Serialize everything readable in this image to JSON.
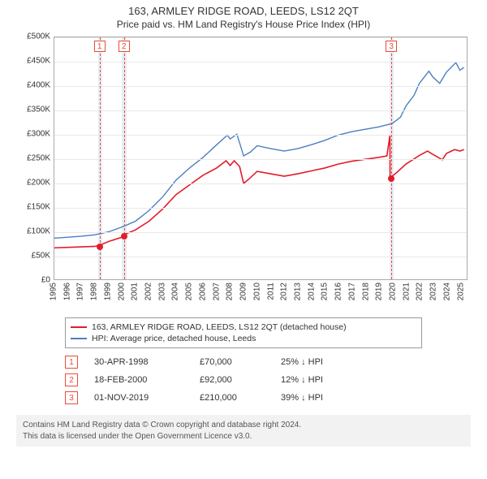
{
  "title": "163, ARMLEY RIDGE ROAD, LEEDS, LS12 2QT",
  "subtitle": "Price paid vs. HM Land Registry's House Price Index (HPI)",
  "chart": {
    "type": "line",
    "background_color": "#ffffff",
    "grid_color": "#e9e9e9",
    "border_color": "#aaaaaa",
    "xlim": [
      1995,
      2025.5
    ],
    "ylim": [
      0,
      500000
    ],
    "y_ticks": [
      0,
      50000,
      100000,
      150000,
      200000,
      250000,
      300000,
      350000,
      400000,
      450000,
      500000
    ],
    "y_tick_labels": [
      "£0",
      "£50K",
      "£100K",
      "£150K",
      "£200K",
      "£250K",
      "£300K",
      "£350K",
      "£400K",
      "£450K",
      "£500K"
    ],
    "x_ticks": [
      1995,
      1996,
      1997,
      1998,
      1999,
      2000,
      2001,
      2002,
      2003,
      2004,
      2005,
      2006,
      2007,
      2008,
      2009,
      2010,
      2011,
      2012,
      2013,
      2014,
      2015,
      2016,
      2017,
      2018,
      2019,
      2020,
      2021,
      2022,
      2023,
      2024,
      2025
    ],
    "shade_bands": [
      {
        "from": 1998.25,
        "to": 1998.55,
        "color": "#e7edf5"
      },
      {
        "from": 1999.95,
        "to": 2000.3,
        "color": "#e7edf5"
      },
      {
        "from": 2019.7,
        "to": 2020.0,
        "color": "#e7edf5"
      }
    ],
    "sale_markers": [
      {
        "id": "1",
        "x": 1998.33,
        "y": 70000
      },
      {
        "id": "2",
        "x": 2000.13,
        "y": 92000
      },
      {
        "id": "3",
        "x": 2019.83,
        "y": 210000
      }
    ],
    "marker_border_color": "#e74c3c",
    "marker_dot_color": "#e11d2a",
    "series": [
      {
        "name": "price_paid",
        "label": "163, ARMLEY RIDGE ROAD, LEEDS, LS12 2QT (detached house)",
        "color": "#e11d2a",
        "line_width": 1.6,
        "points": [
          [
            1995,
            65000
          ],
          [
            1996,
            66000
          ],
          [
            1997,
            67000
          ],
          [
            1998,
            68000
          ],
          [
            1998.33,
            70000
          ],
          [
            1999,
            78000
          ],
          [
            2000,
            87000
          ],
          [
            2000.13,
            92000
          ],
          [
            2001,
            102000
          ],
          [
            2002,
            120000
          ],
          [
            2003,
            145000
          ],
          [
            2004,
            175000
          ],
          [
            2005,
            195000
          ],
          [
            2006,
            215000
          ],
          [
            2007,
            230000
          ],
          [
            2007.7,
            245000
          ],
          [
            2008,
            235000
          ],
          [
            2008.3,
            245000
          ],
          [
            2008.7,
            233000
          ],
          [
            2009,
            198000
          ],
          [
            2009.5,
            210000
          ],
          [
            2010,
            223000
          ],
          [
            2011,
            218000
          ],
          [
            2012,
            213000
          ],
          [
            2013,
            218000
          ],
          [
            2014,
            224000
          ],
          [
            2015,
            230000
          ],
          [
            2016,
            238000
          ],
          [
            2017,
            244000
          ],
          [
            2018,
            248000
          ],
          [
            2019,
            252000
          ],
          [
            2019.6,
            255000
          ],
          [
            2019.82,
            297000
          ],
          [
            2019.83,
            210000
          ],
          [
            2020.3,
            220000
          ],
          [
            2021,
            238000
          ],
          [
            2022,
            256000
          ],
          [
            2022.6,
            265000
          ],
          [
            2023,
            258000
          ],
          [
            2023.7,
            247000
          ],
          [
            2024,
            260000
          ],
          [
            2024.6,
            268000
          ],
          [
            2025,
            265000
          ],
          [
            2025.3,
            268000
          ]
        ]
      },
      {
        "name": "hpi",
        "label": "HPI: Average price, detached house, Leeds",
        "color": "#4a7fc1",
        "line_width": 1.4,
        "points": [
          [
            1995,
            85000
          ],
          [
            1996,
            87000
          ],
          [
            1997,
            89000
          ],
          [
            1998,
            92000
          ],
          [
            1999,
            98000
          ],
          [
            2000,
            108000
          ],
          [
            2001,
            120000
          ],
          [
            2002,
            142000
          ],
          [
            2003,
            170000
          ],
          [
            2004,
            205000
          ],
          [
            2005,
            230000
          ],
          [
            2006,
            252000
          ],
          [
            2007,
            278000
          ],
          [
            2007.8,
            298000
          ],
          [
            2008,
            290000
          ],
          [
            2008.5,
            300000
          ],
          [
            2009,
            255000
          ],
          [
            2009.5,
            263000
          ],
          [
            2010,
            276000
          ],
          [
            2011,
            270000
          ],
          [
            2012,
            265000
          ],
          [
            2013,
            270000
          ],
          [
            2014,
            278000
          ],
          [
            2015,
            287000
          ],
          [
            2016,
            298000
          ],
          [
            2017,
            305000
          ],
          [
            2018,
            310000
          ],
          [
            2019,
            315000
          ],
          [
            2020,
            322000
          ],
          [
            2020.6,
            335000
          ],
          [
            2021,
            358000
          ],
          [
            2021.6,
            380000
          ],
          [
            2022,
            405000
          ],
          [
            2022.7,
            430000
          ],
          [
            2023,
            418000
          ],
          [
            2023.5,
            405000
          ],
          [
            2024,
            428000
          ],
          [
            2024.7,
            448000
          ],
          [
            2025,
            432000
          ],
          [
            2025.3,
            438000
          ]
        ]
      }
    ]
  },
  "legend": {
    "items": [
      {
        "color": "#e11d2a",
        "label": "163, ARMLEY RIDGE ROAD, LEEDS, LS12 2QT (detached house)"
      },
      {
        "color": "#4a7fc1",
        "label": "HPI: Average price, detached house, Leeds"
      }
    ]
  },
  "sales": [
    {
      "id": "1",
      "date": "30-APR-1998",
      "price": "£70,000",
      "delta": "25% ↓ HPI"
    },
    {
      "id": "2",
      "date": "18-FEB-2000",
      "price": "£92,000",
      "delta": "12% ↓ HPI"
    },
    {
      "id": "3",
      "date": "01-NOV-2019",
      "price": "£210,000",
      "delta": "39% ↓ HPI"
    }
  ],
  "footer": {
    "line1": "Contains HM Land Registry data © Crown copyright and database right 2024.",
    "line2": "This data is licensed under the Open Government Licence v3.0."
  }
}
